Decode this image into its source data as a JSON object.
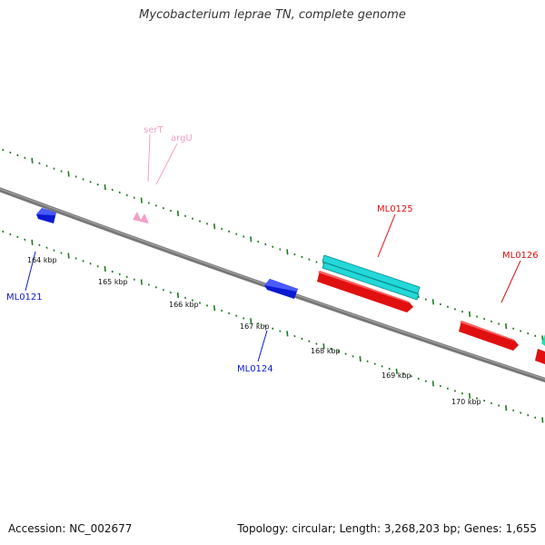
{
  "header": {
    "title": "Mycobacterium leprae TN, complete genome"
  },
  "footer": {
    "accession": "Accession: NC_002677",
    "summary": "Topology: circular; Length: 3,268,203 bp; Genes: 1,655"
  },
  "scale": {
    "ticks": [
      {
        "label": "164 kbp",
        "kbp": 164
      },
      {
        "label": "165 kbp",
        "kbp": 165
      },
      {
        "label": "166 kbp",
        "kbp": 166
      },
      {
        "label": "167 kbp",
        "kbp": 167
      },
      {
        "label": "168 kbp",
        "kbp": 168
      },
      {
        "label": "169 kbp",
        "kbp": 169
      },
      {
        "label": "170 kbp",
        "kbp": 170
      }
    ]
  },
  "genes": [
    {
      "label": "ML0121",
      "color": "#0a1ad0",
      "strand": "reverse"
    },
    {
      "label": "ML0124",
      "color": "#0a1ad0",
      "strand": "reverse"
    },
    {
      "label": "ML0125",
      "color": "#e01010",
      "strand": "forward"
    },
    {
      "label": "ML0126",
      "color": "#e01010",
      "strand": "forward"
    }
  ],
  "rnas": [
    {
      "label": "serT",
      "color": "#f4a0c8"
    },
    {
      "label": "argU",
      "color": "#f4a0c8"
    }
  ],
  "colors": {
    "backbone": "#888888",
    "ticks": "#1e7a1e",
    "cds_teal": "#22d8d8",
    "mrna_green": "#22e0b0"
  }
}
